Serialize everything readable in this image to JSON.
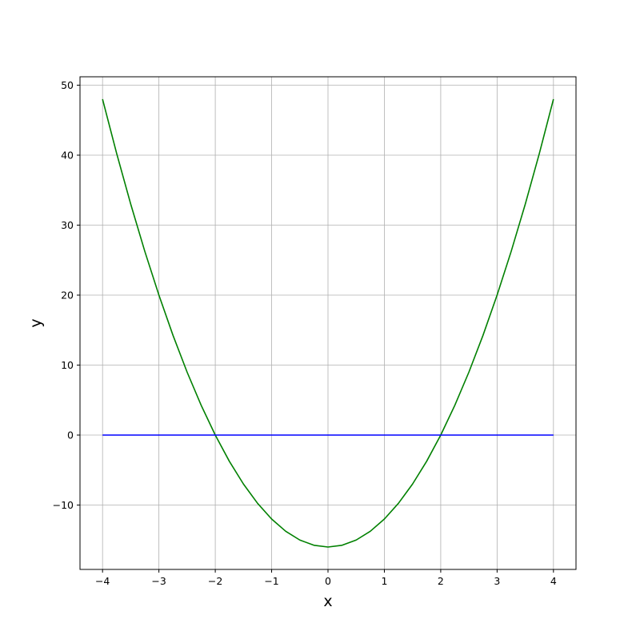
{
  "chart_data": {
    "type": "line",
    "title": "",
    "xlabel": "x",
    "ylabel": "y",
    "xlim": [
      -4.4,
      4.4
    ],
    "ylim": [
      -19.2,
      51.2
    ],
    "grid": true,
    "xticks": [
      -4,
      -3,
      -2,
      -1,
      0,
      1,
      2,
      3,
      4
    ],
    "yticks": [
      -10,
      0,
      10,
      20,
      30,
      40,
      50
    ],
    "series": [
      {
        "color": "#008000",
        "x": [
          -4,
          -3.75,
          -3.5,
          -3.25,
          -3,
          -2.75,
          -2.5,
          -2.25,
          -2,
          -1.75,
          -1.5,
          -1.25,
          -1,
          -0.75,
          -0.5,
          -0.25,
          0,
          0.25,
          0.5,
          0.75,
          1,
          1.25,
          1.5,
          1.75,
          2,
          2.25,
          2.5,
          2.75,
          3,
          3.25,
          3.5,
          3.75,
          4
        ],
        "y": [
          48,
          40.25,
          33,
          26.25,
          20,
          14.25,
          9,
          4.25,
          0,
          -3.75,
          -7,
          -9.75,
          -12,
          -13.75,
          -15,
          -15.75,
          -16,
          -15.75,
          -15,
          -13.75,
          -12,
          -9.75,
          -7,
          -3.75,
          0,
          4.25,
          9,
          14.25,
          20,
          26.25,
          33,
          40.25,
          48
        ]
      },
      {
        "color": "#0000ff",
        "x": [
          -4,
          4
        ],
        "y": [
          0,
          0
        ]
      }
    ]
  }
}
